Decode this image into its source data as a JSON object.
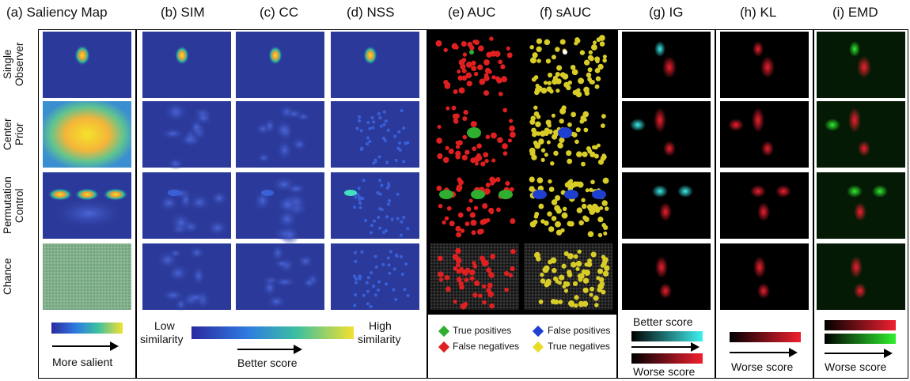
{
  "headers": {
    "a": "(a) Saliency Map",
    "b": "(b) SIM",
    "c": "(c) CC",
    "d": "(d) NSS",
    "e": "(e) AUC",
    "f": "(f) sAUC",
    "g": "(g) IG",
    "h": "(h) KL",
    "i": "(i) EMD"
  },
  "rows": {
    "r1a": "Single",
    "r1b": "Observer",
    "r2a": "Center",
    "r2b": "Prior",
    "r3a": "Permutation",
    "r3b": "Control",
    "r4": "Chance"
  },
  "legend": {
    "more_salient": "More salient",
    "low": "Low",
    "similarity1": "similarity",
    "high": "High",
    "similarity2": "similarity",
    "better_score_sim": "Better score",
    "true_positives": "True positives",
    "false_positives": "False positives",
    "false_negatives": "False negatives",
    "true_negatives": "True negatives",
    "better_score_ig": "Better score",
    "worse_score_ig": "Worse score",
    "worse_score_kl": "Worse score",
    "worse_score_emd": "Worse score"
  },
  "colors": {
    "map_bg": "#2b3a9a",
    "tp": "#2fae2f",
    "fp": "#1f3fd0",
    "fn": "#e02020",
    "tn": "#e8dc2a",
    "ig_cyan": "#30e8e8",
    "red": "#e02020",
    "green": "#20e020"
  }
}
